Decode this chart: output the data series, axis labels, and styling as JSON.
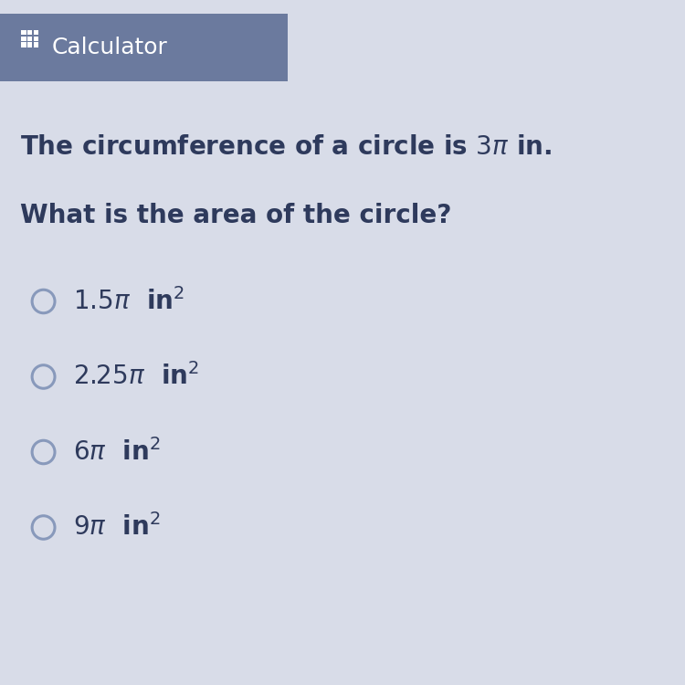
{
  "background_color": "#d8dce8",
  "header_bg_color": "#6b7a9e",
  "header_icon": "calculator_grid",
  "header_label": "Calculator",
  "question_line1_plain": "The circumference of a circle is ",
  "question_line1_math": "3π",
  "question_line1_end": " in.",
  "question_line2": "What is the area of the circle?",
  "options": [
    {
      "prefix": "1.5",
      "suffix": "  in²"
    },
    {
      "prefix": "2.25",
      "suffix": "  in²"
    },
    {
      "prefix": "6",
      "suffix": "  in²"
    },
    {
      "prefix": "9",
      "suffix": "  in²"
    }
  ],
  "text_color": "#2e3a5c",
  "header_text_color": "#ffffff",
  "radio_color": "#8899bb",
  "question_fontsize": 20,
  "option_fontsize": 20,
  "header_fontsize": 18
}
